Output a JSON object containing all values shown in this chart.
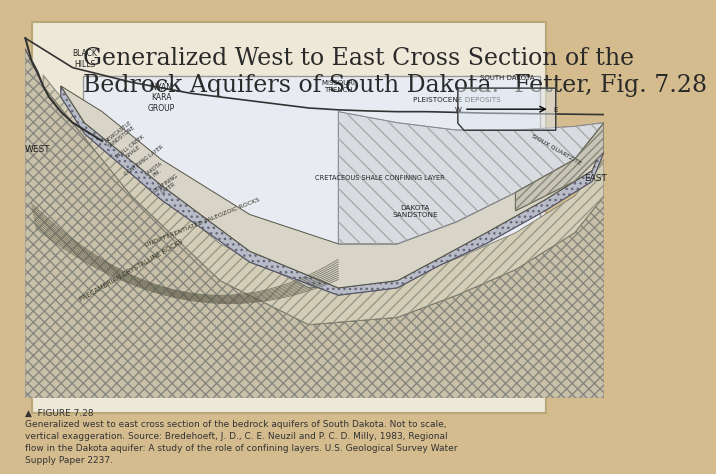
{
  "title_line1": "Generalized West to East Cross Section of the",
  "title_line2": "Bedrock Aquifers of South Dakota.  Fetter, Fig. 7.28",
  "title_fontsize": 17,
  "title_color": "#2a2a2a",
  "background_color": "#d4bc8e",
  "white_panel_color": "#e8ecf0",
  "caption_text": "▲  FIGURE 7.28\nGeneralized west to east cross section of the bedrock aquifers of South Dakota. Not to scale,\nvertical exaggeration. Source: Bredehoeft, J. D., C. E. Neuzil and P. C. D. Milly, 1983, Regional\nflow in the Dakota aquifer: A study of the role of confining layers. U.S. Geological Survey Water\nSupply Paper 2237.",
  "caption_fontsize": 6.5
}
